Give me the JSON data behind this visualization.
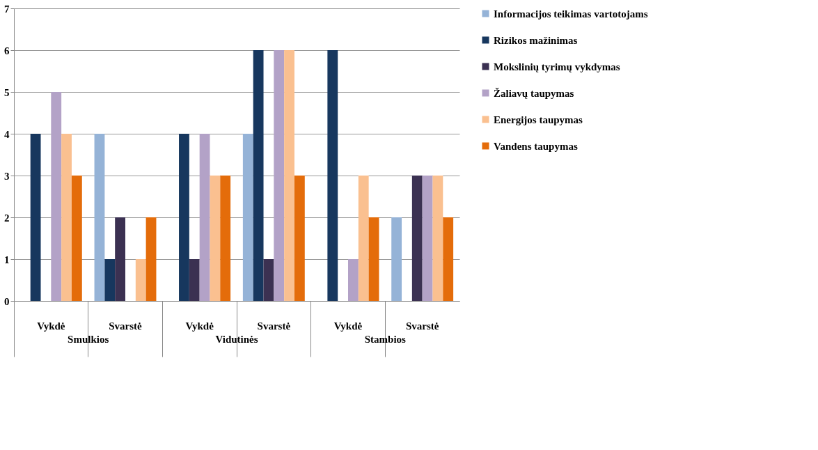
{
  "chart_data": {
    "type": "bar",
    "categories": [
      "Vykdė",
      "Svarstė",
      "Vykdė",
      "Svarstė",
      "Vykdė",
      "Svarstė"
    ],
    "series": [
      {
        "name": "Informacijos teikimas vartotojams",
        "color": "#95b3d7",
        "values": [
          0,
          4,
          0,
          4,
          0,
          2
        ]
      },
      {
        "name": "Rizikos mažinimas",
        "color": "#17375e",
        "values": [
          4,
          1,
          4,
          6,
          6,
          0
        ]
      },
      {
        "name": "Mokslinių tyrimų vykdymas",
        "color": "#3b3152",
        "values": [
          0,
          2,
          1,
          1,
          0,
          3
        ]
      },
      {
        "name": "Žaliavų taupymas",
        "color": "#b3a2c7",
        "values": [
          5,
          0,
          4,
          6,
          1,
          3
        ]
      },
      {
        "name": "Energijos taupymas",
        "color": "#fac090",
        "values": [
          4,
          1,
          3,
          6,
          3,
          3
        ]
      },
      {
        "name": "Vandens taupymas",
        "color": "#e46c0a",
        "values": [
          3,
          2,
          3,
          3,
          2,
          2
        ]
      }
    ],
    "annotations": [
      "Smulkios",
      "Vidutinės",
      "Stambios"
    ],
    "ylim": [
      0,
      7
    ],
    "yticks": [
      0,
      1,
      2,
      3,
      4,
      5,
      6,
      7
    ],
    "grid": "y",
    "legend": "right"
  }
}
